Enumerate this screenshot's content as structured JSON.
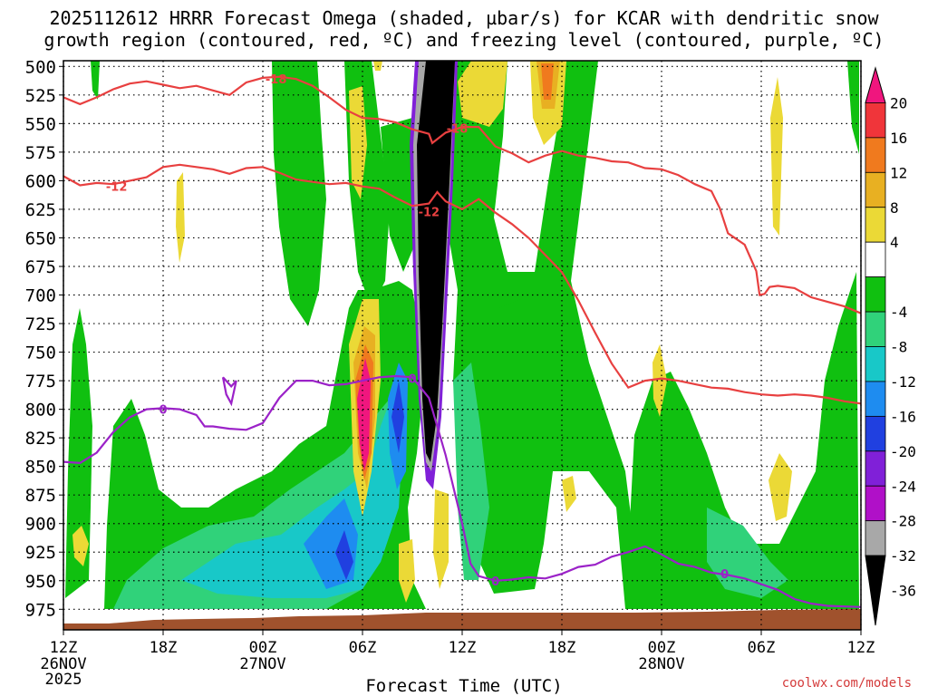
{
  "title_line1": "2025112612 HRRR Forecast Omega (shaded, µbar/s) for KCAR with dendritic snow",
  "title_line2": "growth region (contoured, red, ºC) and freezing level (contoured, purple, ºC)",
  "credit": "coolwx.com/models",
  "chart_data": {
    "type": "heatmap",
    "xlabel": "Forecast Time (UTC)",
    "ylabel": "",
    "x_ticks": [
      {
        "label": "12Z",
        "sub": [
          "26NOV",
          "2025"
        ]
      },
      {
        "label": "18Z",
        "sub": []
      },
      {
        "label": "00Z",
        "sub": [
          "27NOV"
        ]
      },
      {
        "label": "06Z",
        "sub": []
      },
      {
        "label": "12Z",
        "sub": []
      },
      {
        "label": "18Z",
        "sub": []
      },
      {
        "label": "00Z",
        "sub": [
          "28NOV"
        ]
      },
      {
        "label": "06Z",
        "sub": []
      },
      {
        "label": "12Z",
        "sub": []
      }
    ],
    "x_range_hours": [
      0,
      48
    ],
    "y_ticks": [
      500,
      525,
      550,
      575,
      600,
      625,
      650,
      675,
      700,
      725,
      750,
      775,
      800,
      825,
      850,
      875,
      900,
      925,
      950,
      975
    ],
    "y_range_hpa": [
      495,
      993
    ],
    "grid": true,
    "colorbar": {
      "labels": [
        "20",
        "16",
        "12",
        "8",
        "4",
        "-4",
        "-8",
        "-12",
        "-16",
        "-20",
        "-24",
        "-28",
        "-32",
        "-36"
      ],
      "bands": [
        {
          "from": 24,
          "to": 20,
          "color": "#f0167e"
        },
        {
          "from": 20,
          "to": 16,
          "color": "#f0353a"
        },
        {
          "from": 16,
          "to": 12,
          "color": "#f07a1e"
        },
        {
          "from": 12,
          "to": 8,
          "color": "#e8b022"
        },
        {
          "from": 8,
          "to": 4,
          "color": "#ebd936"
        },
        {
          "from": 4,
          "to": -4,
          "color": "#ffffff"
        },
        {
          "from": -4,
          "to": -8,
          "color": "#10c010"
        },
        {
          "from": -8,
          "to": -12,
          "color": "#30d27a"
        },
        {
          "from": -12,
          "to": -16,
          "color": "#18c8c8"
        },
        {
          "from": -16,
          "to": -20,
          "color": "#1e8cf0"
        },
        {
          "from": -20,
          "to": -24,
          "color": "#2040e0"
        },
        {
          "from": -24,
          "to": -28,
          "color": "#8020d8"
        },
        {
          "from": -28,
          "to": -32,
          "color": "#b010c8"
        },
        {
          "from": -32,
          "to": -36,
          "color": "#a8a8a8"
        },
        {
          "from": -36,
          "to": -40,
          "color": "#000000"
        }
      ]
    },
    "contours": {
      "minus18": {
        "label": "-18",
        "color": "#e84040",
        "points": [
          [
            0,
            527
          ],
          [
            1,
            533
          ],
          [
            2,
            527
          ],
          [
            3,
            520
          ],
          [
            4,
            515
          ],
          [
            5,
            513
          ],
          [
            6,
            516
          ],
          [
            7,
            519
          ],
          [
            8,
            517
          ],
          [
            9,
            521
          ],
          [
            10,
            525
          ],
          [
            11,
            514
          ],
          [
            12,
            510
          ],
          [
            13,
            509
          ],
          [
            14,
            511
          ],
          [
            15,
            517
          ],
          [
            16,
            527
          ],
          [
            17,
            538
          ],
          [
            18,
            545
          ],
          [
            19,
            546
          ],
          [
            20,
            549
          ],
          [
            21,
            555
          ],
          [
            22,
            559
          ],
          [
            22.2,
            567
          ],
          [
            23,
            558
          ],
          [
            24,
            553
          ],
          [
            25,
            553
          ],
          [
            26,
            570
          ],
          [
            27,
            576
          ],
          [
            28,
            584
          ],
          [
            29,
            578
          ],
          [
            30,
            574
          ],
          [
            31,
            578
          ],
          [
            32,
            580
          ],
          [
            33,
            583
          ],
          [
            34,
            584
          ],
          [
            35,
            589
          ],
          [
            36,
            590
          ],
          [
            37,
            595
          ],
          [
            38,
            603
          ],
          [
            39,
            609
          ],
          [
            39.5,
            624
          ],
          [
            40,
            646
          ],
          [
            41,
            656
          ],
          [
            41.7,
            679
          ],
          [
            41.9,
            700
          ],
          [
            42.2,
            699
          ],
          [
            42.5,
            693
          ],
          [
            43,
            692
          ],
          [
            44,
            694
          ],
          [
            45,
            702
          ],
          [
            46,
            706
          ],
          [
            47,
            710
          ],
          [
            48,
            716
          ]
        ]
      },
      "minus12": {
        "label": "-12",
        "color": "#e84040",
        "points": [
          [
            0,
            596
          ],
          [
            1,
            604
          ],
          [
            2,
            602
          ],
          [
            3,
            603
          ],
          [
            4,
            600
          ],
          [
            5,
            597
          ],
          [
            6,
            588
          ],
          [
            7,
            586
          ],
          [
            8,
            588
          ],
          [
            9,
            590
          ],
          [
            10,
            594
          ],
          [
            11,
            589
          ],
          [
            12,
            588
          ],
          [
            13,
            593
          ],
          [
            14,
            599
          ],
          [
            15,
            601
          ],
          [
            16,
            603
          ],
          [
            17,
            602
          ],
          [
            18,
            605
          ],
          [
            19,
            607
          ],
          [
            20,
            615
          ],
          [
            21,
            622
          ],
          [
            22,
            620
          ],
          [
            22.5,
            610
          ],
          [
            23,
            618
          ],
          [
            24,
            625
          ],
          [
            25,
            616
          ],
          [
            26,
            628
          ],
          [
            27,
            638
          ],
          [
            28,
            650
          ],
          [
            29,
            665
          ],
          [
            30,
            680
          ],
          [
            31,
            705
          ],
          [
            32,
            733
          ],
          [
            33,
            760
          ],
          [
            34,
            781
          ],
          [
            35,
            775
          ],
          [
            36,
            773
          ],
          [
            37,
            775
          ],
          [
            38,
            778
          ],
          [
            39,
            781
          ],
          [
            40,
            782
          ],
          [
            41,
            785
          ],
          [
            42,
            787
          ],
          [
            43,
            788
          ],
          [
            44,
            787
          ],
          [
            45,
            788
          ],
          [
            46,
            790
          ],
          [
            47,
            793
          ],
          [
            48,
            795
          ]
        ]
      },
      "zero": {
        "label": "0",
        "color": "#9b22c8",
        "points": [
          [
            0,
            846
          ],
          [
            1,
            847
          ],
          [
            2,
            838
          ],
          [
            3,
            820
          ],
          [
            4,
            807
          ],
          [
            5,
            800
          ],
          [
            6,
            799
          ],
          [
            7,
            800
          ],
          [
            8,
            805
          ],
          [
            8.5,
            815
          ],
          [
            9,
            815
          ],
          [
            10,
            817
          ],
          [
            11,
            818
          ],
          [
            12,
            812
          ],
          [
            13,
            790
          ],
          [
            14,
            775
          ],
          [
            15,
            775
          ],
          [
            16,
            779
          ],
          [
            17,
            778
          ],
          [
            18,
            775
          ],
          [
            19,
            772
          ],
          [
            20,
            771
          ],
          [
            21,
            772
          ],
          [
            22,
            790
          ],
          [
            23,
            840
          ],
          [
            24,
            900
          ],
          [
            24.5,
            935
          ],
          [
            25,
            946
          ],
          [
            26,
            950
          ],
          [
            27,
            949
          ],
          [
            28,
            947
          ],
          [
            29,
            948
          ],
          [
            30,
            944
          ],
          [
            31,
            938
          ],
          [
            32,
            936
          ],
          [
            33,
            929
          ],
          [
            34,
            925
          ],
          [
            35,
            920
          ],
          [
            36,
            927
          ],
          [
            37,
            935
          ],
          [
            38,
            938
          ],
          [
            39,
            943
          ],
          [
            40,
            945
          ],
          [
            41,
            948
          ],
          [
            42,
            953
          ],
          [
            43,
            958
          ],
          [
            44,
            966
          ],
          [
            45,
            970
          ],
          [
            46,
            972
          ],
          [
            48,
            973
          ]
        ]
      },
      "zero_loop": {
        "label": "",
        "color": "#9b22c8",
        "points": [
          [
            9.6,
            772
          ],
          [
            10.1,
            780
          ],
          [
            10.4,
            775
          ],
          [
            10.1,
            795
          ],
          [
            9.8,
            787
          ],
          [
            9.6,
            772
          ]
        ]
      }
    }
  }
}
